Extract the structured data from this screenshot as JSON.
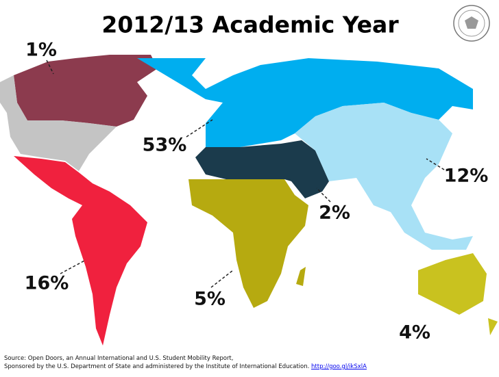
{
  "title": "2012/13 Academic Year",
  "regions": [
    {
      "name_label": "1%"
    },
    {
      "name_label": "53%"
    },
    {
      "name_label": "12%"
    },
    {
      "name_label": "2%"
    },
    {
      "name_label": "16%"
    },
    {
      "name_label": "5%"
    },
    {
      "name_label": "4%"
    }
  ],
  "source": {
    "line1": "Source: Open Doors, an Annual International and U.S. Student Mobility Report,",
    "line2": "Sponsored by the U.S. Department of State and administered by the Institute of International Education.",
    "link": "http://goo.gl/ikSxlA"
  }
}
